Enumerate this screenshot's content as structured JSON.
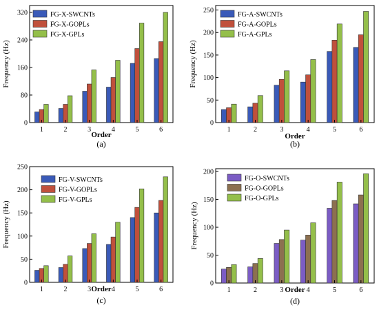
{
  "chart_data": [
    {
      "type": "bar",
      "panel_label": "(a)",
      "categories": [
        "1",
        "2",
        "3",
        "4",
        "5",
        "6"
      ],
      "xlabel": "Order",
      "ylabel": "Frequency (Hz)",
      "ylim": [
        0,
        340
      ],
      "yticks": [
        0,
        80,
        160,
        240,
        320
      ],
      "legend_position": "top-left",
      "series": [
        {
          "name": "FG-X-SWCNTs",
          "color": "#3a5ab8",
          "values": [
            31,
            41,
            91,
            103,
            172,
            186
          ]
        },
        {
          "name": "FG-X-GOPLs",
          "color": "#c0503c",
          "values": [
            38,
            53,
            112,
            131,
            215,
            235
          ]
        },
        {
          "name": "FG-X-GPLs",
          "color": "#94bf4a",
          "values": [
            53,
            78,
            153,
            181,
            289,
            320
          ]
        }
      ]
    },
    {
      "type": "bar",
      "panel_label": "(b)",
      "categories": [
        "1",
        "2",
        "3",
        "4",
        "5",
        "6"
      ],
      "xlabel": "Order",
      "ylabel": "Frequency (Hz)",
      "ylim": [
        0,
        260
      ],
      "yticks": [
        0,
        50,
        100,
        150,
        200,
        250
      ],
      "legend_position": "top-left",
      "series": [
        {
          "name": "FG-A-SWCNTs",
          "color": "#3a5ab8",
          "values": [
            29,
            35,
            83,
            90,
            158,
            167
          ]
        },
        {
          "name": "FG-A-GOPLs",
          "color": "#c0503c",
          "values": [
            33,
            43,
            96,
            106,
            183,
            195
          ]
        },
        {
          "name": "FG-A-GPLs",
          "color": "#94bf4a",
          "values": [
            41,
            60,
            115,
            140,
            219,
            247
          ]
        }
      ]
    },
    {
      "type": "bar",
      "panel_label": "(c)",
      "categories": [
        "1",
        "2",
        "3",
        "4",
        "5",
        "6"
      ],
      "xlabel": "Order",
      "ylabel": "Frequency (Hz)",
      "ylim": [
        0,
        250
      ],
      "yticks": [
        0,
        50,
        100,
        150,
        200,
        250
      ],
      "legend_position": "top-left",
      "series": [
        {
          "name": "FG-V-SWCNTs",
          "color": "#3a5ab8",
          "values": [
            26,
            32,
            73,
            82,
            140,
            150
          ]
        },
        {
          "name": "FG-V-GOPLs",
          "color": "#c0503c",
          "values": [
            30,
            39,
            84,
            98,
            162,
            177
          ]
        },
        {
          "name": "FG-V-GPLs",
          "color": "#94bf4a",
          "values": [
            36,
            57,
            105,
            130,
            202,
            228
          ]
        }
      ]
    },
    {
      "type": "bar",
      "panel_label": "(d)",
      "categories": [
        "1",
        "2",
        "3",
        "4",
        "5",
        "6"
      ],
      "xlabel": "Order",
      "ylabel": "Frequency (Hz)",
      "ylim": [
        0,
        205
      ],
      "yticks": [
        0,
        50,
        100,
        150,
        200
      ],
      "legend_position": "top-left",
      "series": [
        {
          "name": "FG-O-SWCNTs",
          "color": "#7b5cc4",
          "values": [
            25,
            29,
            71,
            77,
            134,
            142
          ]
        },
        {
          "name": "FG-O-GOPLs",
          "color": "#8c7050",
          "values": [
            28,
            35,
            78,
            86,
            148,
            158
          ]
        },
        {
          "name": "FG-O-GPLs",
          "color": "#94bf4a",
          "values": [
            33,
            44,
            95,
            108,
            181,
            196
          ]
        }
      ]
    }
  ]
}
